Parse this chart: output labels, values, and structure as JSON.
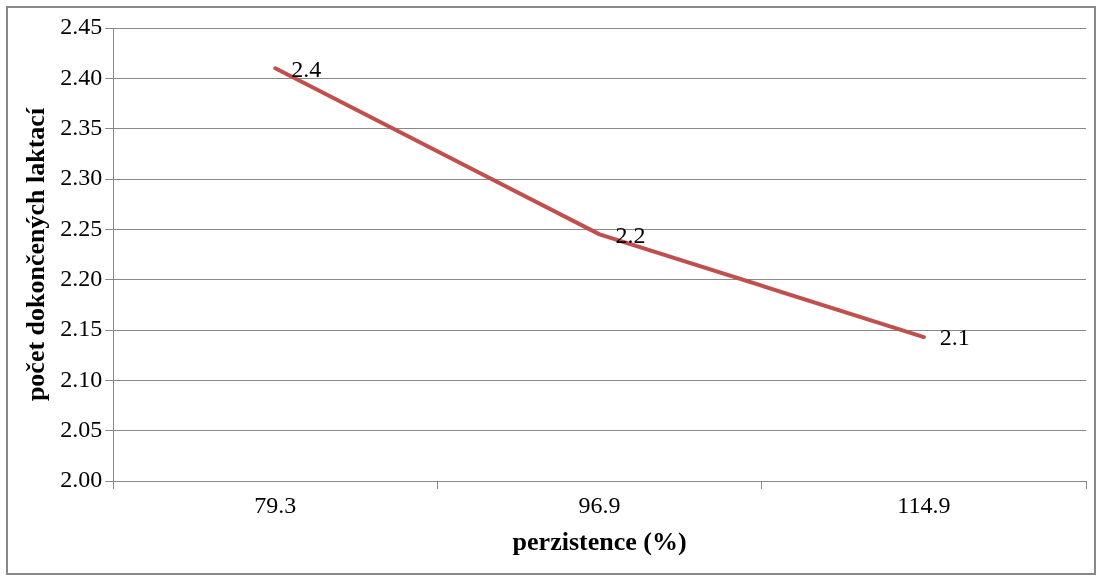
{
  "chart_data": {
    "type": "line",
    "xlabel": "perzistence (%)",
    "ylabel": "počet dokončených laktací",
    "categories": [
      "79.3",
      "96.9",
      "114.9"
    ],
    "series": [
      {
        "color": "#c0504d",
        "values": [
          2.41,
          2.245,
          2.143
        ],
        "value_labels": [
          "2.4",
          "2.2",
          "2.1"
        ]
      }
    ],
    "ylim": [
      2.0,
      2.45
    ],
    "yticks": [
      {
        "value": 2.0,
        "label": "2.00"
      },
      {
        "value": 2.05,
        "label": "2.05"
      },
      {
        "value": 2.1,
        "label": "2.10"
      },
      {
        "value": 2.15,
        "label": "2.15"
      },
      {
        "value": 2.2,
        "label": "2.20"
      },
      {
        "value": 2.25,
        "label": "2.25"
      },
      {
        "value": 2.3,
        "label": "2.30"
      },
      {
        "value": 2.35,
        "label": "2.35"
      },
      {
        "value": 2.4,
        "label": "2.40"
      },
      {
        "value": 2.45,
        "label": "2.45"
      }
    ],
    "grid": "y",
    "legend": false,
    "marker": "none",
    "line_style": "solid"
  }
}
